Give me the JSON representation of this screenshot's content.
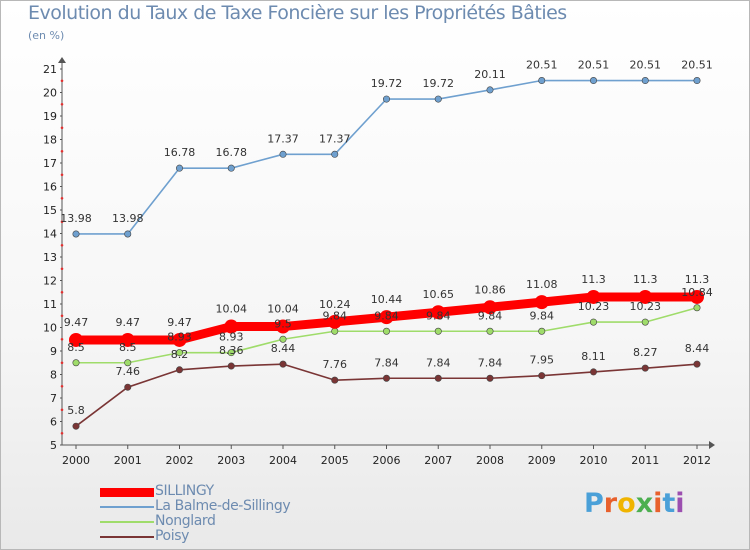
{
  "title": "Evolution du Taux de Taxe Foncière sur les Propriétés Bâties",
  "subtitle": "(en %)",
  "logo": {
    "text": "Proxiti",
    "colors": [
      "#4aa0d8",
      "#e8602c",
      "#f0b400",
      "#4caf50",
      "#e8602c",
      "#4aa0d8",
      "#9c4fb0"
    ]
  },
  "chart_data": {
    "type": "line",
    "title": "Evolution du Taux de Taxe Foncière sur les Propriétés Bâties",
    "ylabel": "(en %)",
    "xlabel": "",
    "categories": [
      "2000",
      "2001",
      "2002",
      "2003",
      "2004",
      "2005",
      "2006",
      "2007",
      "2008",
      "2009",
      "2010",
      "2011",
      "2012"
    ],
    "ylim": [
      5,
      21
    ],
    "yticks": [
      5,
      6,
      7,
      8,
      9,
      10,
      11,
      12,
      13,
      14,
      15,
      16,
      17,
      18,
      19,
      20,
      21
    ],
    "grid": false,
    "legend_position": "bottom-left",
    "series": [
      {
        "name": "SILLINGY",
        "color": "#ff0000",
        "values": [
          9.47,
          9.47,
          9.47,
          10.04,
          10.04,
          10.24,
          10.44,
          10.65,
          10.86,
          11.08,
          11.3,
          11.3,
          11.3
        ],
        "labels": [
          "9.47",
          "9.47",
          "9.47",
          "10.04",
          "10.04",
          "10.24",
          "10.44",
          "10.65",
          "10.86",
          "11.08",
          "11.3",
          "11.3",
          "11.3"
        ]
      },
      {
        "name": "La Balme-de-Sillingy",
        "color": "#6fa0cf",
        "values": [
          13.98,
          13.98,
          16.78,
          16.78,
          17.37,
          17.37,
          19.72,
          19.72,
          20.11,
          20.51,
          20.51,
          20.51,
          20.51
        ],
        "labels": [
          "13.98",
          "13.98",
          "16.78",
          "16.78",
          "17.37",
          "17.37",
          "19.72",
          "19.72",
          "20.11",
          "20.51",
          "20.51",
          "20.51",
          "20.51"
        ]
      },
      {
        "name": "Nonglard",
        "color": "#9fdc6a",
        "values": [
          8.5,
          8.5,
          8.93,
          8.93,
          9.5,
          9.84,
          9.84,
          9.84,
          9.84,
          9.84,
          10.23,
          10.23,
          10.84
        ],
        "labels": [
          "8.5",
          "8.5",
          "8.93",
          "8.93",
          "9.5",
          "9.84",
          "9.84",
          "9.84",
          "9.84",
          "9.84",
          "10.23",
          "10.23",
          "10.84"
        ]
      },
      {
        "name": "Poisy",
        "color": "#7a3535",
        "values": [
          5.8,
          7.46,
          8.2,
          8.36,
          8.44,
          7.76,
          7.84,
          7.84,
          7.84,
          7.95,
          8.11,
          8.27,
          8.44
        ],
        "labels": [
          "5.8",
          "7.46",
          "8.2",
          "8.36",
          "8.44",
          "7.76",
          "7.84",
          "7.84",
          "7.84",
          "7.95",
          "8.11",
          "8.27",
          "8.44"
        ]
      }
    ]
  }
}
